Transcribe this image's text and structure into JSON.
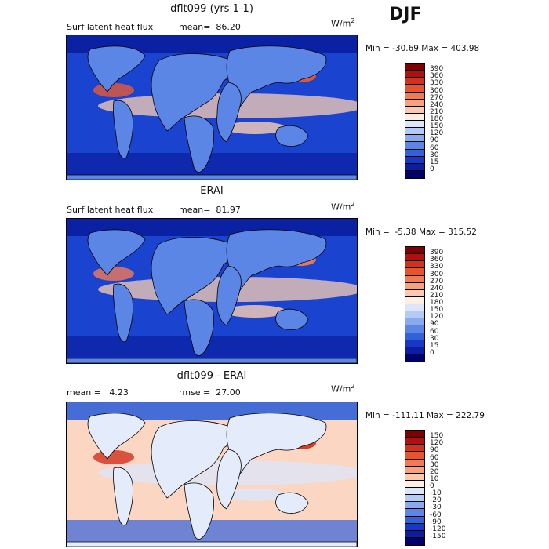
{
  "season": "DJF",
  "panels": [
    {
      "title": "dflt099 (yrs 1-1)",
      "var_label": "Surf latent heat flux",
      "stat1": "mean=  86.20",
      "stat2": "",
      "units_base": "W/m",
      "units_exp": "2",
      "minmax": "Min = -30.69 Max = 403.98",
      "colorbar": {
        "labels": [
          "390",
          "360",
          "330",
          "300",
          "270",
          "240",
          "210",
          "180",
          "150",
          "120",
          "90",
          "60",
          "30",
          "15",
          "0"
        ],
        "colors": [
          "#7f0000",
          "#b01010",
          "#d2311b",
          "#e9522f",
          "#f17a55",
          "#f7a17e",
          "#fbc9ad",
          "#fdeee4",
          "#dbe6fb",
          "#b4ccf5",
          "#8aaaee",
          "#5c86e6",
          "#3261d8",
          "#1638c4",
          "#0a1e9e",
          "#00006a"
        ]
      }
    },
    {
      "title": "ERAI",
      "var_label": "Surf latent heat flux",
      "stat1": "mean=  81.97",
      "stat2": "",
      "units_base": "W/m",
      "units_exp": "2",
      "minmax": "Min =  -5.38 Max = 315.52",
      "colorbar": {
        "labels": [
          "390",
          "360",
          "330",
          "300",
          "270",
          "240",
          "210",
          "180",
          "150",
          "120",
          "90",
          "60",
          "30",
          "15",
          "0"
        ],
        "colors": [
          "#7f0000",
          "#b01010",
          "#d2311b",
          "#e9522f",
          "#f17a55",
          "#f7a17e",
          "#fbc9ad",
          "#fdeee4",
          "#dbe6fb",
          "#b4ccf5",
          "#8aaaee",
          "#5c86e6",
          "#3261d8",
          "#1638c4",
          "#0a1e9e",
          "#00006a"
        ]
      }
    },
    {
      "title": "dflt099 - ERAI",
      "var_label": "mean =   4.23",
      "stat1": "rmse =  27.00",
      "stat2": "",
      "units_base": "W/m",
      "units_exp": "2",
      "minmax": "Min = -111.11 Max = 222.79",
      "colorbar": {
        "labels": [
          "150",
          "120",
          "90",
          "60",
          "30",
          "20",
          "10",
          "0",
          "-10",
          "-20",
          "-30",
          "-60",
          "-90",
          "-120",
          "-150"
        ],
        "colors": [
          "#7f0000",
          "#b01010",
          "#d2311b",
          "#e9522f",
          "#f17a55",
          "#f7a17e",
          "#fbc9ad",
          "#fdeee4",
          "#dbe6fb",
          "#b4ccf5",
          "#8aaaee",
          "#5c86e6",
          "#3261d8",
          "#1638c4",
          "#0a1e9e",
          "#00006a"
        ]
      }
    }
  ],
  "map_palettes": [
    {
      "ocean": "#1a44d0",
      "high": "#e65a36",
      "mid": "#fbcfb3",
      "low": "#0a1e9e",
      "land": "#5c86e6"
    },
    {
      "ocean": "#1a44d0",
      "high": "#f17a55",
      "mid": "#fbcfb3",
      "low": "#0a1e9e",
      "land": "#5c86e6"
    },
    {
      "ocean": "#fbd6c2",
      "high": "#d2311b",
      "mid": "#dbe6fb",
      "low": "#3261d8",
      "land": "#e4ecfb"
    }
  ]
}
